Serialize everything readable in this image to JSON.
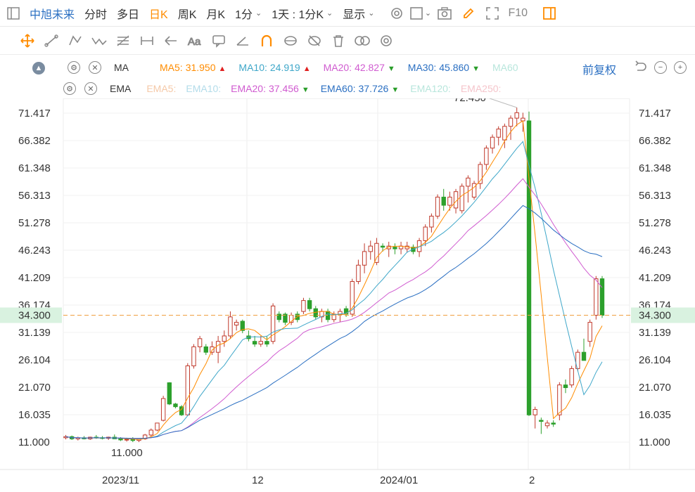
{
  "topbar": {
    "stock_name": "中旭未来",
    "periods": [
      "分时",
      "多日",
      "日K",
      "周K",
      "月K",
      "1分"
    ],
    "active_period": "日K",
    "mode": "1天 : 1分K",
    "display_label": "显示",
    "f10_label": "F10"
  },
  "ma_row": {
    "name": "MA",
    "items": [
      {
        "label": "MA5:",
        "value": "31.950",
        "trend": "▲",
        "color": "#ff8c00",
        "trend_color": "#e02020"
      },
      {
        "label": "MA10:",
        "value": "24.919",
        "trend": "▲",
        "color": "#3fa7c9",
        "trend_color": "#e02020"
      },
      {
        "label": "MA20:",
        "value": "42.827",
        "trend": "▼",
        "color": "#d05bd0",
        "trend_color": "#2a9d2a"
      },
      {
        "label": "MA30:",
        "value": "45.860",
        "trend": "▼",
        "color": "#2a6fc2",
        "trend_color": "#2a9d2a"
      },
      {
        "label": "MA60",
        "value": "",
        "trend": "",
        "color": "#b8e6dc",
        "trend_color": "#2a9d2a"
      }
    ],
    "adjust_label": "前复权"
  },
  "ema_row": {
    "name": "EMA",
    "items": [
      {
        "label": "EMA5:",
        "value": "",
        "trend": "",
        "color": "#f5c9a8",
        "trend_color": "#2a9d2a"
      },
      {
        "label": "EMA10:",
        "value": "",
        "trend": "",
        "color": "#b3dcea",
        "trend_color": "#2a9d2a"
      },
      {
        "label": "EMA20:",
        "value": "37.456",
        "trend": "▼",
        "color": "#d05bd0",
        "trend_color": "#2a9d2a"
      },
      {
        "label": "EMA60:",
        "value": "37.726",
        "trend": "▼",
        "color": "#2a6fc2",
        "trend_color": "#2a9d2a"
      },
      {
        "label": "EMA120:",
        "value": "",
        "trend": "",
        "color": "#b8e6dc",
        "trend_color": "#2a9d2a"
      },
      {
        "label": "EMA250:",
        "value": "",
        "trend": "",
        "color": "#f5c5cb",
        "trend_color": "#2a9d2a"
      }
    ]
  },
  "chart_data": {
    "type": "candlestick",
    "y_ticks": [
      "71.417",
      "66.382",
      "61.348",
      "56.313",
      "51.278",
      "46.243",
      "41.209",
      "36.174",
      "31.139",
      "26.104",
      "21.070",
      "16.035",
      "11.000"
    ],
    "ylim": [
      11.0,
      71.417
    ],
    "x_labels": [
      "2023/11",
      "12",
      "2024/01",
      "2"
    ],
    "current_price": "34.300",
    "max_label": "72.450",
    "min_label": "11.000",
    "colors": {
      "up": "#c0392b",
      "down": "#2ca02c",
      "ma5": "#ff8c00",
      "ma10": "#3fa7c9",
      "ma20": "#d05bd0",
      "ma30": "#2a6fc2",
      "current": "#f0a040"
    },
    "candles": [
      [
        11.8,
        12.3,
        11.5,
        12.0
      ],
      [
        12.0,
        12.2,
        11.4,
        11.6
      ],
      [
        11.6,
        12.0,
        11.3,
        11.8
      ],
      [
        11.8,
        12.1,
        11.5,
        11.6
      ],
      [
        11.6,
        12.0,
        11.4,
        11.9
      ],
      [
        11.9,
        12.3,
        11.6,
        11.8
      ],
      [
        11.8,
        12.1,
        11.5,
        11.7
      ],
      [
        11.7,
        12.0,
        11.4,
        11.9
      ],
      [
        11.9,
        12.4,
        11.6,
        11.6
      ],
      [
        11.6,
        11.9,
        11.2,
        11.4
      ],
      [
        11.4,
        11.8,
        11.1,
        11.5
      ],
      [
        11.5,
        11.9,
        11.0,
        11.3
      ],
      [
        11.3,
        11.7,
        11.0,
        11.6
      ],
      [
        11.6,
        12.5,
        11.4,
        12.3
      ],
      [
        12.3,
        13.5,
        12.0,
        13.2
      ],
      [
        13.2,
        14.5,
        13.0,
        14.5
      ],
      [
        15.0,
        19.5,
        14.8,
        19.0
      ],
      [
        21.9,
        22.0,
        17.8,
        18.0
      ],
      [
        18.0,
        18.2,
        17.2,
        17.5
      ],
      [
        17.5,
        17.8,
        15.8,
        16.0
      ],
      [
        16.0,
        25.5,
        15.8,
        25.0
      ],
      [
        25.0,
        29.0,
        24.5,
        28.5
      ],
      [
        28.5,
        30.5,
        27.5,
        30.0
      ],
      [
        28.5,
        29.0,
        27.0,
        27.5
      ],
      [
        27.5,
        29.5,
        27.0,
        28.5
      ],
      [
        27.5,
        30.5,
        25.5,
        29.5
      ],
      [
        29.5,
        31.5,
        28.5,
        30.5
      ],
      [
        30.5,
        35.0,
        30.0,
        34.0
      ],
      [
        32.5,
        33.5,
        31.5,
        33.0
      ],
      [
        33.2,
        33.5,
        31.0,
        31.5
      ],
      [
        30.5,
        31.5,
        29.5,
        30.0
      ],
      [
        29.5,
        30.5,
        28.5,
        29.0
      ],
      [
        29.0,
        30.5,
        28.5,
        29.5
      ],
      [
        29.5,
        30.5,
        28.5,
        29.0
      ],
      [
        29.5,
        36.5,
        29.0,
        36.0
      ],
      [
        34.5,
        35.0,
        33.0,
        33.5
      ],
      [
        34.5,
        34.8,
        32.5,
        33.0
      ],
      [
        33.0,
        34.8,
        32.5,
        34.3
      ],
      [
        34.5,
        35.0,
        33.0,
        33.5
      ],
      [
        35.0,
        37.5,
        34.5,
        37.0
      ],
      [
        37.0,
        37.5,
        35.0,
        35.5
      ],
      [
        35.5,
        36.0,
        33.5,
        34.0
      ],
      [
        34.0,
        35.5,
        33.0,
        35.0
      ],
      [
        35.0,
        35.5,
        33.0,
        33.5
      ],
      [
        33.5,
        35.0,
        33.0,
        34.5
      ],
      [
        34.5,
        35.5,
        33.0,
        35.0
      ],
      [
        35.5,
        36.0,
        34.0,
        34.5
      ],
      [
        34.5,
        41.0,
        34.0,
        40.5
      ],
      [
        40.5,
        44.5,
        40.0,
        43.5
      ],
      [
        43.5,
        47.5,
        42.0,
        46.0
      ],
      [
        46.0,
        48.0,
        44.5,
        47.0
      ],
      [
        44.0,
        48.5,
        43.5,
        47.5
      ],
      [
        47.0,
        47.5,
        46.0,
        46.8
      ],
      [
        46.5,
        47.8,
        45.0,
        47.0
      ],
      [
        46.8,
        47.5,
        45.5,
        46.5
      ],
      [
        46.5,
        47.8,
        45.5,
        47.0
      ],
      [
        46.5,
        47.8,
        45.8,
        47.0
      ],
      [
        46.8,
        47.3,
        45.5,
        46.0
      ],
      [
        46.0,
        48.5,
        45.0,
        48.0
      ],
      [
        48.0,
        51.0,
        47.0,
        50.5
      ],
      [
        50.5,
        53.0,
        49.5,
        52.5
      ],
      [
        52.5,
        56.5,
        52.0,
        56.0
      ],
      [
        56.0,
        57.5,
        53.5,
        54.5
      ],
      [
        54.5,
        57.0,
        53.5,
        56.0
      ],
      [
        54.0,
        57.5,
        53.0,
        57.0
      ],
      [
        53.5,
        58.5,
        53.0,
        58.0
      ],
      [
        58.0,
        60.0,
        55.0,
        59.5
      ],
      [
        56.0,
        59.0,
        55.5,
        58.5
      ],
      [
        58.5,
        62.5,
        57.5,
        62.0
      ],
      [
        62.0,
        65.5,
        61.0,
        65.0
      ],
      [
        65.0,
        67.5,
        64.0,
        67.0
      ],
      [
        67.0,
        69.0,
        65.5,
        68.5
      ],
      [
        66.5,
        69.5,
        65.0,
        69.0
      ],
      [
        69.0,
        71.0,
        66.5,
        70.5
      ],
      [
        70.5,
        72.45,
        69.0,
        71.5
      ],
      [
        70.0,
        71.5,
        68.0,
        70.5
      ],
      [
        70.0,
        71.7,
        15.8,
        16.0
      ],
      [
        16.0,
        17.5,
        13.5,
        17.0
      ],
      [
        15.0,
        15.5,
        12.5,
        14.8
      ],
      [
        14.0,
        15.0,
        13.5,
        14.5
      ],
      [
        14.5,
        15.0,
        13.8,
        14.3
      ],
      [
        16.0,
        22.0,
        15.0,
        21.5
      ],
      [
        21.5,
        22.5,
        20.0,
        21.0
      ],
      [
        21.5,
        25.0,
        21.0,
        24.5
      ],
      [
        24.5,
        28.0,
        24.0,
        27.5
      ],
      [
        27.5,
        30.0,
        26.0,
        26.0
      ],
      [
        29.5,
        33.5,
        28.5,
        33.0
      ],
      [
        34.3,
        41.5,
        33.5,
        41.0
      ],
      [
        41.0,
        41.5,
        33.8,
        34.3
      ]
    ]
  }
}
